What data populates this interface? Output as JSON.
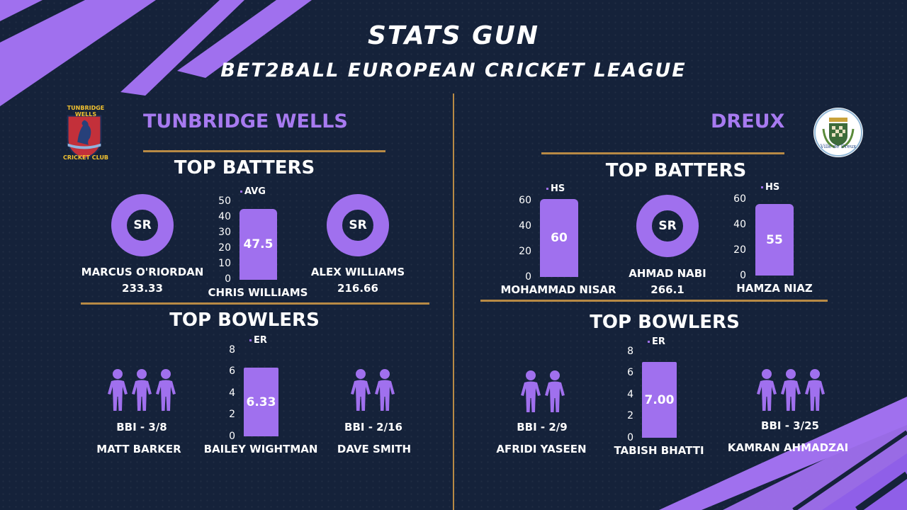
{
  "header": {
    "title": "STATS GUN",
    "subtitle": "BET2BALL EUROPEAN CRICKET LEAGUE"
  },
  "colors": {
    "accent": "#a070ee",
    "gold": "#b88a45",
    "background": "#15223a"
  },
  "left_team": {
    "name": "TUNBRIDGE WELLS",
    "logo": {
      "top_text": "TUNBRIDGE WELLS",
      "bottom_text": "CRICKET CLUB",
      "icon": "rampant-horse-shield-icon"
    },
    "batters_heading": "TOP BATTERS",
    "batters": [
      {
        "name": "MARCUS O'RIORDAN",
        "value": "233.33",
        "badge": "SR"
      },
      {
        "name": "CHRIS WILLIAMS",
        "metric": "AVG",
        "value": 47.5,
        "value_label": "47.5",
        "axis_ticks": [
          "50",
          "40",
          "30",
          "20",
          "10",
          "0"
        ],
        "axis_max": 50
      },
      {
        "name": "ALEX WILLIAMS",
        "value": "216.66",
        "badge": "SR"
      }
    ],
    "bowlers_heading": "TOP BOWLERS",
    "bowlers": [
      {
        "name": "MATT BARKER",
        "bbi": "BBI - 3/8",
        "wickets": 3
      },
      {
        "name": "BAILEY WIGHTMAN",
        "metric": "ER",
        "value": 6.33,
        "value_label": "6.33",
        "axis_ticks": [
          "8",
          "6",
          "4",
          "2",
          "0"
        ],
        "axis_max": 8
      },
      {
        "name": "DAVE SMITH",
        "bbi": "BBI - 2/16",
        "wickets": 2
      }
    ]
  },
  "right_team": {
    "name": "DREUX",
    "logo": {
      "text": "Ville de Dreux",
      "icon": "dreux-crest-icon"
    },
    "batters_heading": "TOP BATTERS",
    "batters": [
      {
        "name": "MOHAMMAD NISAR",
        "metric": "HS",
        "value": 60,
        "value_label": "60",
        "axis_ticks": [
          "60",
          "40",
          "20",
          "0"
        ],
        "axis_max": 60
      },
      {
        "name": "AHMAD NABI",
        "value": "266.1",
        "badge": "SR"
      },
      {
        "name": "HAMZA NIAZ",
        "metric": "HS",
        "value": 55,
        "value_label": "55",
        "axis_ticks": [
          "60",
          "40",
          "20",
          "0"
        ],
        "axis_max": 60
      }
    ],
    "bowlers_heading": "TOP BOWLERS",
    "bowlers": [
      {
        "name": "AFRIDI YASEEN",
        "bbi": "BBI - 2/9",
        "wickets": 2
      },
      {
        "name": "TABISH BHATTI",
        "metric": "ER",
        "value": 7.0,
        "value_label": "7.00",
        "axis_ticks": [
          "8",
          "6",
          "4",
          "2",
          "0"
        ],
        "axis_max": 8
      },
      {
        "name": "KAMRAN AHMADZAI",
        "bbi": "BBI - 3/25",
        "wickets": 3
      }
    ]
  }
}
